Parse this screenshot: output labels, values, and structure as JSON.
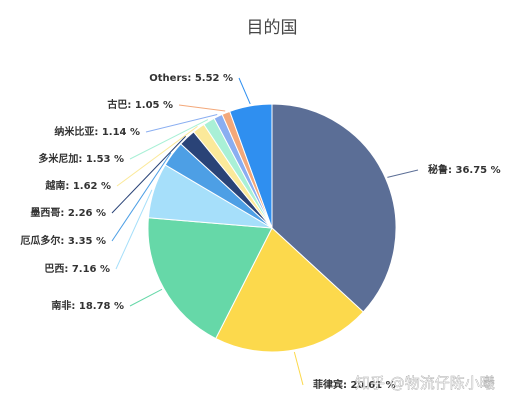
{
  "chart_data": {
    "type": "pie",
    "title": "目的国",
    "start_angle_deg": 90,
    "direction": "clockwise",
    "slices": [
      {
        "name": "秘鲁",
        "label": "秘鲁: 36.75 %",
        "value": 36.75,
        "color": "#5b6e96"
      },
      {
        "name": "菲律宾",
        "label": "菲律宾: 20.61 %",
        "value": 20.61,
        "color": "#fcd94c"
      },
      {
        "name": "南非",
        "label": "南非: 18.78 %",
        "value": 18.78,
        "color": "#66d8a8"
      },
      {
        "name": "巴西",
        "label": "巴西: 7.16 %",
        "value": 7.16,
        "color": "#a6dffa"
      },
      {
        "name": "厄瓜多尔",
        "label": "厄瓜多尔: 3.35 %",
        "value": 3.35,
        "color": "#4d9fe5"
      },
      {
        "name": "墨西哥",
        "label": "墨西哥: 2.26 %",
        "value": 2.26,
        "color": "#2a4377"
      },
      {
        "name": "越南",
        "label": "越南: 1.62 %",
        "value": 1.62,
        "color": "#fbe99a"
      },
      {
        "name": "多米尼加",
        "label": "多米尼加: 1.53 %",
        "value": 1.53,
        "color": "#a9f0d6"
      },
      {
        "name": "纳米比亚",
        "label": "纳米比亚: 1.14 %",
        "value": 1.14,
        "color": "#8aaef1"
      },
      {
        "name": "古巴",
        "label": "古巴: 1.05 %",
        "value": 1.05,
        "color": "#f3a87a"
      },
      {
        "name": "Others",
        "label": "Others: 5.52 %",
        "value": 5.52,
        "color": "#2f8ff0"
      }
    ]
  },
  "watermark": "知乎 @物流仔陈小曦"
}
